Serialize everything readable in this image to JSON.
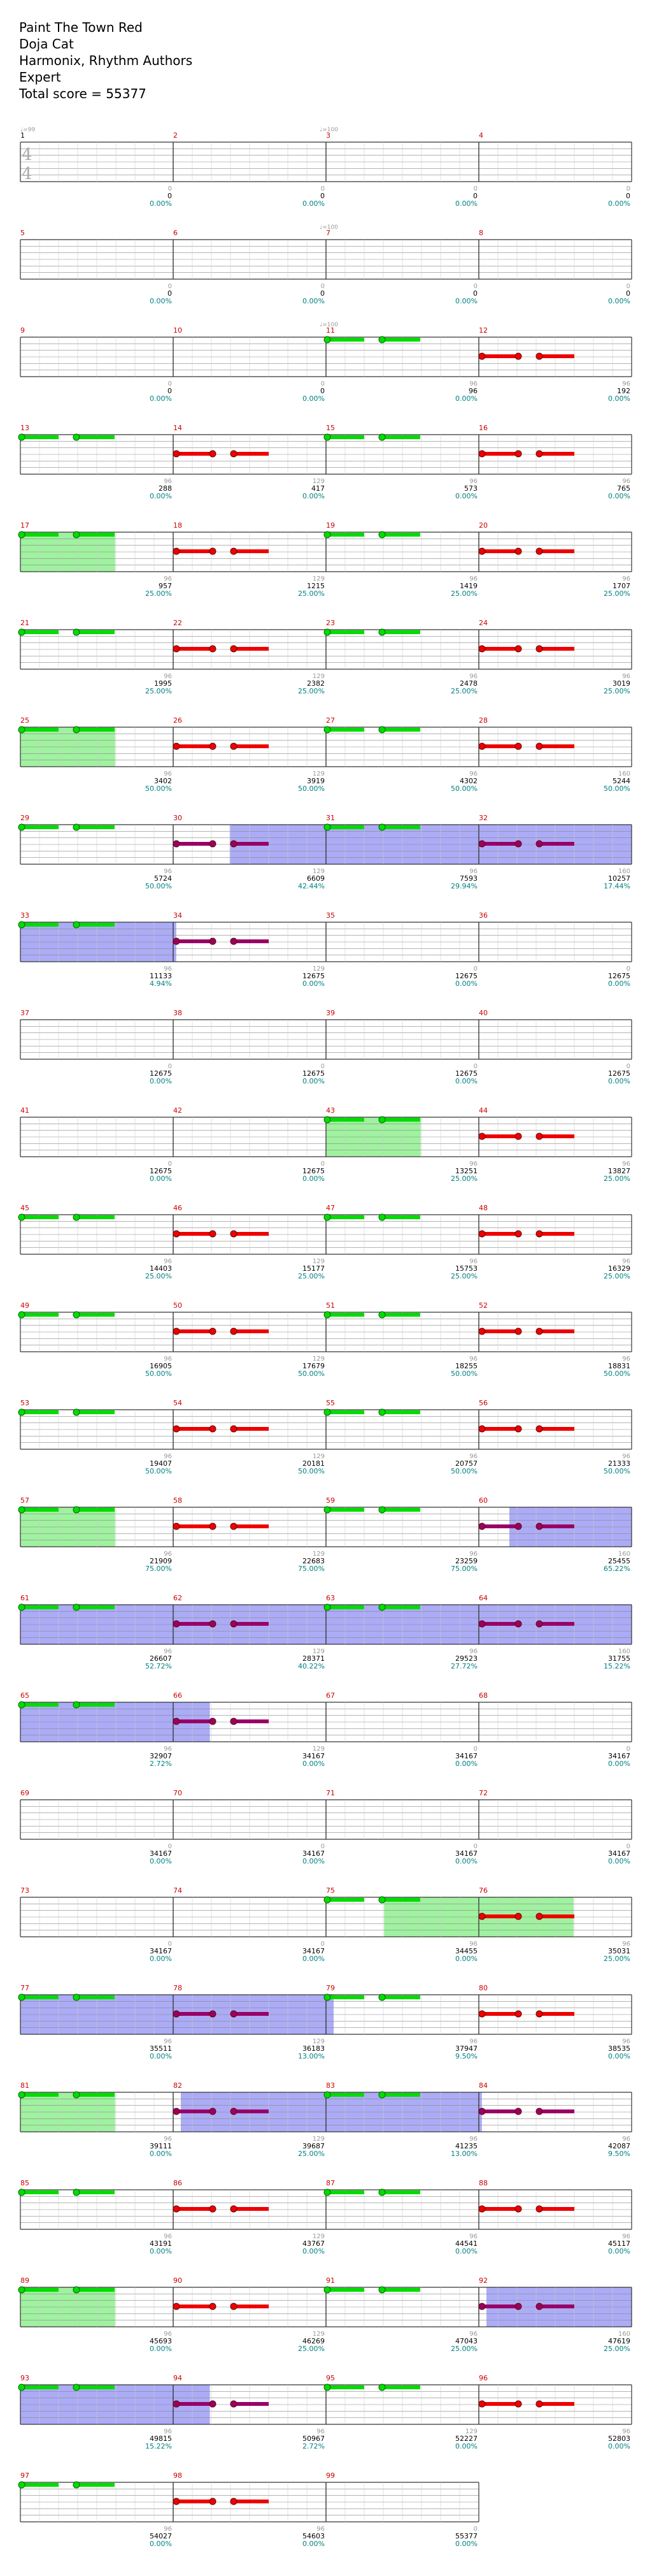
{
  "header": {
    "song_title": "Paint The Town Red",
    "artist": "Doja Cat",
    "charter": "Harmonix, Rhythm Authors",
    "difficulty": "Expert",
    "total_score": "Total score = 55377"
  },
  "time_signature": {
    "numerator": "4",
    "denominator": "4"
  },
  "tempo_labels": [
    {
      "measure": 1,
      "text": "♩=99"
    },
    {
      "measure": 3,
      "text": "♩=100"
    },
    {
      "measure": 7,
      "text": "♩=100"
    },
    {
      "measure": 11,
      "text": "♩=100"
    }
  ],
  "colors": {
    "measure_number": "#cc0000",
    "first_measure_number": "#000000",
    "score": "#000000",
    "percent": "#008080",
    "note_count": "#999999",
    "green_note": "#00dd00",
    "red_note": "#ee0000",
    "purple_note": "#990066",
    "star_power": "#88ee88",
    "overdrive": "#6666ee",
    "staff_line": "#888888"
  },
  "chart_data": {
    "type": "table",
    "columns": [
      "measure",
      "note_count",
      "score",
      "percent"
    ],
    "measures": [
      {
        "n": 1,
        "c": "0",
        "s": "0",
        "p": "0.00%"
      },
      {
        "n": 2,
        "c": "0",
        "s": "0",
        "p": "0.00%"
      },
      {
        "n": 3,
        "c": "0",
        "s": "0",
        "p": "0.00%"
      },
      {
        "n": 4,
        "c": "0",
        "s": "0",
        "p": "0.00%"
      },
      {
        "n": 5,
        "c": "0",
        "s": "0",
        "p": "0.00%"
      },
      {
        "n": 6,
        "c": "0",
        "s": "0",
        "p": "0.00%"
      },
      {
        "n": 7,
        "c": "0",
        "s": "0",
        "p": "0.00%"
      },
      {
        "n": 8,
        "c": "0",
        "s": "0",
        "p": "0.00%"
      },
      {
        "n": 9,
        "c": "0",
        "s": "0",
        "p": "0.00%"
      },
      {
        "n": 10,
        "c": "0",
        "s": "0",
        "p": "0.00%"
      },
      {
        "n": 11,
        "c": "96",
        "s": "96",
        "p": "0.00%"
      },
      {
        "n": 12,
        "c": "96",
        "s": "192",
        "p": "0.00%"
      },
      {
        "n": 13,
        "c": "96",
        "s": "288",
        "p": "0.00%"
      },
      {
        "n": 14,
        "c": "129",
        "s": "417",
        "p": "0.00%"
      },
      {
        "n": 15,
        "c": "96",
        "s": "573",
        "p": "0.00%"
      },
      {
        "n": 16,
        "c": "96",
        "s": "765",
        "p": "0.00%"
      },
      {
        "n": 17,
        "c": "96",
        "s": "957",
        "p": "25.00%"
      },
      {
        "n": 18,
        "c": "129",
        "s": "1215",
        "p": "25.00%"
      },
      {
        "n": 19,
        "c": "96",
        "s": "1419",
        "p": "25.00%"
      },
      {
        "n": 20,
        "c": "96",
        "s": "1707",
        "p": "25.00%"
      },
      {
        "n": 21,
        "c": "96",
        "s": "1995",
        "p": "25.00%"
      },
      {
        "n": 22,
        "c": "129",
        "s": "2382",
        "p": "25.00%"
      },
      {
        "n": 23,
        "c": "96",
        "s": "2478",
        "p": "25.00%"
      },
      {
        "n": 24,
        "c": "96",
        "s": "3019",
        "p": "25.00%"
      },
      {
        "n": 25,
        "c": "96",
        "s": "3402",
        "p": "50.00%"
      },
      {
        "n": 26,
        "c": "129",
        "s": "3919",
        "p": "50.00%"
      },
      {
        "n": 27,
        "c": "96",
        "s": "4302",
        "p": "50.00%"
      },
      {
        "n": 28,
        "c": "160",
        "s": "5244",
        "p": "50.00%"
      },
      {
        "n": 29,
        "c": "96",
        "s": "5724",
        "p": "50.00%"
      },
      {
        "n": 30,
        "c": "129",
        "s": "6609",
        "p": "42.44%"
      },
      {
        "n": 31,
        "c": "96",
        "s": "7593",
        "p": "29.94%"
      },
      {
        "n": 32,
        "c": "160",
        "s": "10257",
        "p": "17.44%"
      },
      {
        "n": 33,
        "c": "96",
        "s": "11133",
        "p": "4.94%"
      },
      {
        "n": 34,
        "c": "129",
        "s": "12675",
        "p": "0.00%"
      },
      {
        "n": 35,
        "c": "0",
        "s": "12675",
        "p": "0.00%"
      },
      {
        "n": 36,
        "c": "0",
        "s": "12675",
        "p": "0.00%"
      },
      {
        "n": 37,
        "c": "0",
        "s": "12675",
        "p": "0.00%"
      },
      {
        "n": 38,
        "c": "0",
        "s": "12675",
        "p": "0.00%"
      },
      {
        "n": 39,
        "c": "0",
        "s": "12675",
        "p": "0.00%"
      },
      {
        "n": 40,
        "c": "0",
        "s": "12675",
        "p": "0.00%"
      },
      {
        "n": 41,
        "c": "0",
        "s": "12675",
        "p": "0.00%"
      },
      {
        "n": 42,
        "c": "0",
        "s": "12675",
        "p": "0.00%"
      },
      {
        "n": 43,
        "c": "96",
        "s": "13251",
        "p": "25.00%"
      },
      {
        "n": 44,
        "c": "96",
        "s": "13827",
        "p": "25.00%"
      },
      {
        "n": 45,
        "c": "96",
        "s": "14403",
        "p": "25.00%"
      },
      {
        "n": 46,
        "c": "129",
        "s": "15177",
        "p": "25.00%"
      },
      {
        "n": 47,
        "c": "96",
        "s": "15753",
        "p": "25.00%"
      },
      {
        "n": 48,
        "c": "96",
        "s": "16329",
        "p": "25.00%"
      },
      {
        "n": 49,
        "c": "96",
        "s": "16905",
        "p": "50.00%"
      },
      {
        "n": 50,
        "c": "129",
        "s": "17679",
        "p": "50.00%"
      },
      {
        "n": 51,
        "c": "96",
        "s": "18255",
        "p": "50.00%"
      },
      {
        "n": 52,
        "c": "96",
        "s": "18831",
        "p": "50.00%"
      },
      {
        "n": 53,
        "c": "96",
        "s": "19407",
        "p": "50.00%"
      },
      {
        "n": 54,
        "c": "129",
        "s": "20181",
        "p": "50.00%"
      },
      {
        "n": 55,
        "c": "96",
        "s": "20757",
        "p": "50.00%"
      },
      {
        "n": 56,
        "c": "96",
        "s": "21333",
        "p": "50.00%"
      },
      {
        "n": 57,
        "c": "96",
        "s": "21909",
        "p": "75.00%"
      },
      {
        "n": 58,
        "c": "129",
        "s": "22683",
        "p": "75.00%"
      },
      {
        "n": 59,
        "c": "96",
        "s": "23259",
        "p": "75.00%"
      },
      {
        "n": 60,
        "c": "160",
        "s": "25455",
        "p": "65.22%"
      },
      {
        "n": 61,
        "c": "96",
        "s": "26607",
        "p": "52.72%"
      },
      {
        "n": 62,
        "c": "129",
        "s": "28371",
        "p": "40.22%"
      },
      {
        "n": 63,
        "c": "96",
        "s": "29523",
        "p": "27.72%"
      },
      {
        "n": 64,
        "c": "160",
        "s": "31755",
        "p": "15.22%"
      },
      {
        "n": 65,
        "c": "96",
        "s": "32907",
        "p": "2.72%"
      },
      {
        "n": 66,
        "c": "129",
        "s": "34167",
        "p": "0.00%"
      },
      {
        "n": 67,
        "c": "0",
        "s": "34167",
        "p": "0.00%"
      },
      {
        "n": 68,
        "c": "0",
        "s": "34167",
        "p": "0.00%"
      },
      {
        "n": 69,
        "c": "0",
        "s": "34167",
        "p": "0.00%"
      },
      {
        "n": 70,
        "c": "0",
        "s": "34167",
        "p": "0.00%"
      },
      {
        "n": 71,
        "c": "0",
        "s": "34167",
        "p": "0.00%"
      },
      {
        "n": 72,
        "c": "0",
        "s": "34167",
        "p": "0.00%"
      },
      {
        "n": 73,
        "c": "0",
        "s": "34167",
        "p": "0.00%"
      },
      {
        "n": 74,
        "c": "0",
        "s": "34167",
        "p": "0.00%"
      },
      {
        "n": 75,
        "c": "96",
        "s": "34455",
        "p": "0.00%"
      },
      {
        "n": 76,
        "c": "96",
        "s": "35031",
        "p": "25.00%"
      },
      {
        "n": 77,
        "c": "96",
        "s": "35511",
        "p": "0.00%"
      },
      {
        "n": 78,
        "c": "129",
        "s": "36183",
        "p": "13.00%"
      },
      {
        "n": 79,
        "c": "96",
        "s": "37947",
        "p": "9.50%"
      },
      {
        "n": 80,
        "c": "96",
        "s": "38535",
        "p": "0.00%"
      },
      {
        "n": 81,
        "c": "96",
        "s": "39111",
        "p": "0.00%"
      },
      {
        "n": 82,
        "c": "129",
        "s": "39687",
        "p": "25.00%"
      },
      {
        "n": 83,
        "c": "96",
        "s": "41235",
        "p": "13.00%"
      },
      {
        "n": 84,
        "c": "96",
        "s": "42087",
        "p": "9.50%"
      },
      {
        "n": 85,
        "c": "96",
        "s": "43191",
        "p": "0.00%"
      },
      {
        "n": 86,
        "c": "129",
        "s": "43767",
        "p": "0.00%"
      },
      {
        "n": 87,
        "c": "96",
        "s": "44541",
        "p": "0.00%"
      },
      {
        "n": 88,
        "c": "96",
        "s": "45117",
        "p": "0.00%"
      },
      {
        "n": 89,
        "c": "96",
        "s": "45693",
        "p": "0.00%"
      },
      {
        "n": 90,
        "c": "129",
        "s": "46269",
        "p": "25.00%"
      },
      {
        "n": 91,
        "c": "96",
        "s": "47043",
        "p": "25.00%"
      },
      {
        "n": 92,
        "c": "160",
        "s": "47619",
        "p": "25.00%"
      },
      {
        "n": 93,
        "c": "96",
        "s": "49815",
        "p": "15.22%"
      },
      {
        "n": 94,
        "c": "96",
        "s": "50967",
        "p": "2.72%"
      },
      {
        "n": 95,
        "c": "129",
        "s": "52227",
        "p": "0.00%"
      },
      {
        "n": 96,
        "c": "96",
        "s": "52803",
        "p": "0.00%"
      },
      {
        "n": 97,
        "c": "96",
        "s": "54027",
        "p": "0.00%"
      },
      {
        "n": 98,
        "c": "96",
        "s": "54603",
        "p": "0.00%"
      },
      {
        "n": 99,
        "c": "0",
        "s": "55377",
        "p": "0.00%"
      }
    ]
  }
}
